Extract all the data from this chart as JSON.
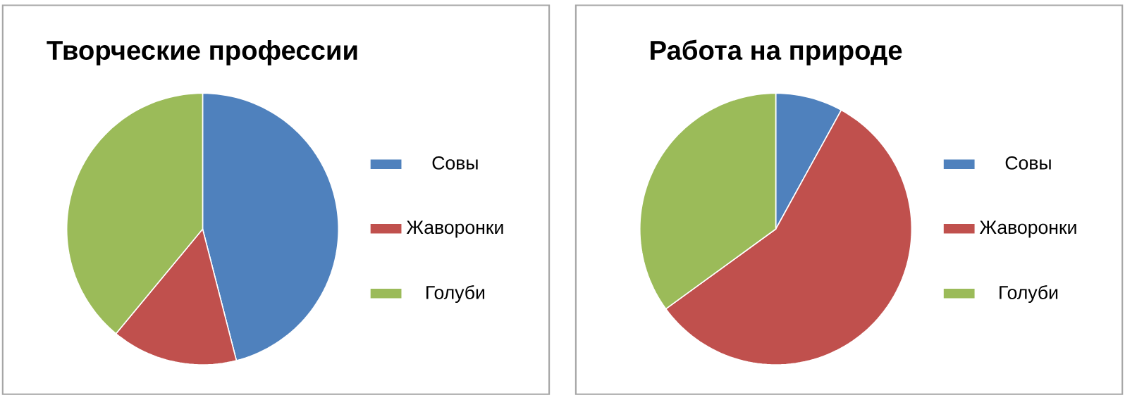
{
  "chart_data": [
    {
      "type": "pie",
      "title": "Творческие профессии",
      "categories": [
        "Совы",
        "Жаворонки",
        "Голуби"
      ],
      "values": [
        46,
        15,
        39
      ],
      "colors": [
        "#4f81bd",
        "#c0504d",
        "#9bbb59"
      ],
      "legend": "right"
    },
    {
      "type": "pie",
      "title": "Работа на природе",
      "categories": [
        "Совы",
        "Жаворонки",
        "Голуби"
      ],
      "values": [
        8,
        57,
        35
      ],
      "colors": [
        "#4f81bd",
        "#c0504d",
        "#9bbb59"
      ],
      "legend": "right"
    }
  ]
}
